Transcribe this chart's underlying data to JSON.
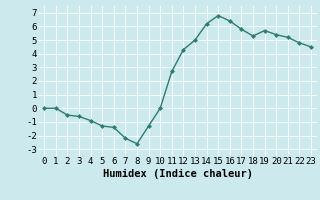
{
  "x": [
    0,
    1,
    2,
    3,
    4,
    5,
    6,
    7,
    8,
    9,
    10,
    11,
    12,
    13,
    14,
    15,
    16,
    17,
    18,
    19,
    20,
    21,
    22,
    23
  ],
  "y": [
    0.0,
    0.0,
    -0.5,
    -0.6,
    -0.9,
    -1.3,
    -1.4,
    -2.2,
    -2.6,
    -1.3,
    0.0,
    2.7,
    4.3,
    5.0,
    6.2,
    6.8,
    6.4,
    5.8,
    5.3,
    5.7,
    5.4,
    5.2,
    4.8,
    4.5
  ],
  "line_color": "#2e7d6e",
  "marker": "D",
  "marker_size": 2,
  "bg_color": "#cce9ed",
  "grid_color": "#ffffff",
  "xlabel": "Humidex (Indice chaleur)",
  "ylim": [
    -3.5,
    7.5
  ],
  "xlim": [
    -0.5,
    23.5
  ],
  "yticks": [
    -3,
    -2,
    -1,
    0,
    1,
    2,
    3,
    4,
    5,
    6,
    7
  ],
  "xticks": [
    0,
    1,
    2,
    3,
    4,
    5,
    6,
    7,
    8,
    9,
    10,
    11,
    12,
    13,
    14,
    15,
    16,
    17,
    18,
    19,
    20,
    21,
    22,
    23
  ],
  "tick_fontsize": 6.5,
  "xlabel_fontsize": 7.5,
  "label_color": "#000000",
  "line_width": 1.0
}
